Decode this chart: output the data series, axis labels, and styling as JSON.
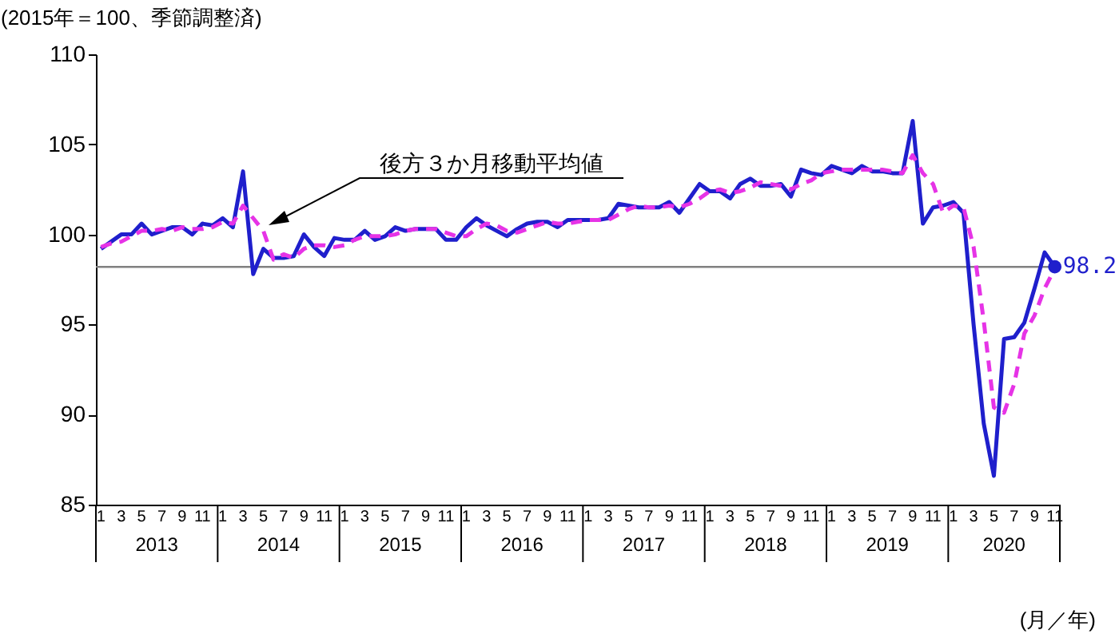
{
  "chart_data": {
    "type": "line",
    "ylabel": "(2015年＝100、季節調整済)",
    "xlabel": "(月／年)",
    "categories": [
      "1",
      null,
      "3",
      null,
      "5",
      null,
      "7",
      null,
      "9",
      null,
      "11",
      null,
      "1",
      null,
      "3",
      null,
      "5",
      null,
      "7",
      null,
      "9",
      null,
      "11",
      null,
      "1",
      null,
      "3",
      null,
      "5",
      null,
      "7",
      null,
      "9",
      null,
      "11",
      null,
      "1",
      null,
      "3",
      null,
      "5",
      null,
      "7",
      null,
      "9",
      null,
      "11",
      null,
      "1",
      null,
      "3",
      null,
      "5",
      null,
      "7",
      null,
      "9",
      null,
      "11",
      null,
      "1",
      null,
      "3",
      null,
      "5",
      null,
      "7",
      null,
      "9",
      null,
      "11",
      null,
      "1",
      null,
      "3",
      null,
      "5",
      null,
      "7",
      null,
      "9",
      null,
      "11",
      null,
      "1",
      null,
      "3",
      null,
      "5",
      null,
      "7",
      null,
      "9",
      null,
      "11"
    ],
    "annotations": [
      "2013",
      "2014",
      "2015",
      "2016",
      "2017",
      "2018",
      "2019",
      "2020",
      "後方３か月移動平均値"
    ],
    "series": [
      {
        "color": "#1f1fcc",
        "line_style": "solid",
        "values": [
          99.2,
          99.6,
          100.0,
          100.0,
          100.6,
          100.0,
          100.2,
          100.4,
          100.4,
          100.0,
          100.6,
          100.5,
          100.9,
          100.4,
          103.5,
          97.8,
          99.2,
          98.7,
          98.7,
          98.8,
          100.0,
          99.3,
          98.8,
          99.8,
          99.7,
          99.7,
          100.2,
          99.7,
          99.9,
          100.4,
          100.2,
          100.3,
          100.3,
          100.3,
          99.7,
          99.7,
          100.4,
          100.9,
          100.5,
          100.2,
          99.9,
          100.3,
          100.6,
          100.7,
          100.7,
          100.4,
          100.8,
          100.8,
          100.8,
          100.8,
          100.9,
          101.7,
          101.6,
          101.5,
          101.5,
          101.5,
          101.8,
          101.2,
          102.0,
          102.8,
          102.4,
          102.4,
          102.0,
          102.8,
          103.1,
          102.7,
          102.7,
          102.8,
          102.1,
          103.6,
          103.4,
          103.3,
          103.8,
          103.6,
          103.4,
          103.8,
          103.5,
          103.5,
          103.4,
          103.4,
          106.3,
          100.6,
          101.5,
          101.6,
          101.8,
          101.2,
          95.0,
          89.5,
          86.6,
          94.2,
          94.3,
          95.1,
          97.0,
          99.0,
          98.2
        ]
      },
      {
        "color": "#e633e6",
        "line_style": "dashed",
        "values": [
          99.3,
          99.5,
          99.6,
          99.9,
          100.2,
          100.2,
          100.3,
          100.2,
          100.4,
          100.3,
          100.3,
          100.4,
          100.7,
          100.6,
          101.6,
          100.9,
          100.2,
          98.6,
          98.9,
          98.7,
          99.2,
          99.4,
          99.4,
          99.3,
          99.4,
          99.7,
          99.9,
          99.9,
          99.9,
          100.0,
          100.2,
          100.3,
          100.3,
          100.3,
          100.1,
          99.9,
          99.9,
          100.3,
          100.6,
          100.5,
          100.2,
          100.1,
          100.3,
          100.5,
          100.7,
          100.6,
          100.6,
          100.7,
          100.8,
          100.8,
          100.8,
          101.1,
          101.4,
          101.6,
          101.5,
          101.5,
          101.6,
          101.5,
          101.7,
          102.0,
          102.4,
          102.5,
          102.3,
          102.4,
          102.6,
          102.9,
          102.8,
          102.7,
          102.5,
          102.8,
          103.0,
          103.4,
          103.5,
          103.6,
          103.6,
          103.6,
          103.6,
          103.6,
          103.5,
          103.4,
          104.4,
          103.4,
          102.8,
          101.2,
          101.6,
          101.5,
          99.3,
          95.2,
          90.4,
          90.1,
          91.7,
          94.5,
          95.5,
          97.0,
          98.1
        ]
      },
      {
        "type": "scatter",
        "marker": "circle",
        "color": "#1f1fcc",
        "values": [
          null,
          null,
          null,
          null,
          null,
          null,
          null,
          null,
          null,
          null,
          null,
          null,
          null,
          null,
          null,
          null,
          null,
          null,
          null,
          null,
          null,
          null,
          null,
          null,
          null,
          null,
          null,
          null,
          null,
          null,
          null,
          null,
          null,
          null,
          null,
          null,
          null,
          null,
          null,
          null,
          null,
          null,
          null,
          null,
          null,
          null,
          null,
          null,
          null,
          null,
          null,
          null,
          null,
          null,
          null,
          null,
          null,
          null,
          null,
          null,
          null,
          null,
          null,
          null,
          null,
          null,
          null,
          null,
          null,
          null,
          null,
          null,
          null,
          null,
          null,
          null,
          null,
          null,
          null,
          null,
          null,
          null,
          null,
          null,
          null,
          null,
          null,
          null,
          null,
          null,
          null,
          null,
          null,
          null,
          98.2
        ],
        "value_labels": [
          null,
          null,
          null,
          null,
          null,
          null,
          null,
          null,
          null,
          null,
          null,
          null,
          null,
          null,
          null,
          null,
          null,
          null,
          null,
          null,
          null,
          null,
          null,
          null,
          null,
          null,
          null,
          null,
          null,
          null,
          null,
          null,
          null,
          null,
          null,
          null,
          null,
          null,
          null,
          null,
          null,
          null,
          null,
          null,
          null,
          null,
          null,
          null,
          null,
          null,
          null,
          null,
          null,
          null,
          null,
          null,
          null,
          null,
          null,
          null,
          null,
          null,
          null,
          null,
          null,
          null,
          null,
          null,
          null,
          null,
          null,
          null,
          null,
          null,
          null,
          null,
          null,
          null,
          null,
          null,
          null,
          null,
          null,
          null,
          null,
          null,
          null,
          null,
          null,
          null,
          null,
          null,
          null,
          null,
          "98.2"
        ]
      }
    ],
    "ref_lines": [
      {
        "axis": "y",
        "value": 98.2,
        "color": "#808080"
      }
    ],
    "ylim": [
      85,
      110
    ],
    "yticks": [
      85,
      90,
      95,
      100,
      105,
      110
    ]
  }
}
